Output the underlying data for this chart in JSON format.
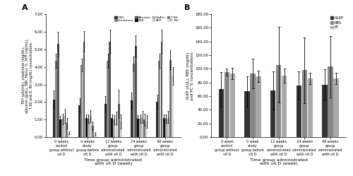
{
  "panel_A": {
    "title": "A",
    "xlabel": "Time group administrated\nwith vit D (week)",
    "ylabel": "TSH (μIU/mL), creatinine (mg/dL),\nalbumin (g/dL), INR, HbA₁c %, AFP (ng/mL),\nT. Bil and D. Bil (mg/dL) concentrations",
    "ylim": [
      0,
      7.0
    ],
    "yticks": [
      0.0,
      1.0,
      2.0,
      3.0,
      4.0,
      5.0,
      6.0,
      7.0
    ],
    "yticklabels": [
      "0.00",
      "1.00",
      "2.00",
      "3.00",
      "4.00",
      "5.00",
      "6.00",
      "7.00"
    ],
    "categories": [
      "0 weeks\ncontrol\ngroup without\nvit D",
      "0 weeks\nstudy\ngroup before\nvit D",
      "12 weeks\ngroup\nadministrated\nwith vit D",
      "24 weeks\ngroup\nadministrated\nwith vit D",
      "48 weeks\ngroup\nadministrated\nwith vit D"
    ],
    "series": [
      "TSH",
      "Creatinine",
      "Albumin",
      "INR",
      "HbA1c",
      "AFP",
      "T. Bil",
      "D. Bil"
    ],
    "colors": [
      "#2a2a2a",
      "#888888",
      "#555555",
      "#111111",
      "#aaaaaa",
      "#cccccc",
      "#777777",
      "#dddddd"
    ],
    "values": [
      [
        2.15,
        4.35,
        5.3,
        1.0,
        1.05,
        1.2,
        0.8,
        0.25
      ],
      [
        1.8,
        4.1,
        5.45,
        1.1,
        1.05,
        1.2,
        0.65,
        0.2
      ],
      [
        1.9,
        4.35,
        5.45,
        1.1,
        1.0,
        1.1,
        1.9,
        0.9
      ],
      [
        2.1,
        4.2,
        5.2,
        1.05,
        1.05,
        1.15,
        1.0,
        0.9
      ],
      [
        2.0,
        4.35,
        5.45,
        1.1,
        1.05,
        1.15,
        4.4,
        3.5
      ]
    ],
    "errors": [
      [
        0.5,
        0.4,
        0.7,
        0.2,
        0.3,
        0.4,
        0.3,
        0.1
      ],
      [
        0.4,
        0.35,
        0.6,
        0.2,
        0.25,
        0.35,
        0.25,
        0.1
      ],
      [
        0.45,
        0.4,
        0.65,
        0.2,
        0.25,
        0.35,
        0.8,
        0.4
      ],
      [
        0.45,
        0.4,
        0.6,
        0.2,
        0.25,
        0.35,
        0.35,
        0.35
      ],
      [
        0.4,
        0.4,
        0.65,
        0.2,
        0.25,
        0.35,
        0.55,
        0.5
      ]
    ],
    "legend_row1": [
      "TSH",
      "Creatinine",
      "Albumin",
      "INR"
    ],
    "legend_row2": [
      "HbA1c",
      "AFP",
      "T. Bil",
      "D. Bil"
    ]
  },
  "panel_B": {
    "title": "B",
    "xlabel": "Time group administrated\nwith vit D (week)",
    "ylabel": "ALKP (IU/L), RBS (mg/dL)\nand PC % concentrations",
    "ylim": [
      0,
      180.0
    ],
    "yticks": [
      0.0,
      20.0,
      40.0,
      60.0,
      80.0,
      100.0,
      120.0,
      140.0,
      160.0,
      180.0
    ],
    "yticklabels": [
      "0.00",
      "20.00",
      "40.00",
      "60.00",
      "80.00",
      "100.00",
      "120.00",
      "140.00",
      "160.00",
      "180.00"
    ],
    "categories": [
      "0 week\ncontrol\ngroup without\nvit D",
      "0 week\nstudy\ngroup before\nvit D",
      "12 weeks\ngroup\nadministrated\nwith vit D",
      "24 weeks\ngroup\nadministrated\nwith vit D",
      "48 weeks\ngroup\nadministrated\nwith vit D"
    ],
    "series": [
      "ALKP",
      "RBS",
      "PC"
    ],
    "colors": [
      "#333333",
      "#888888",
      "#aaaaaa"
    ],
    "values": [
      [
        70.0,
        95.0,
        93.0
      ],
      [
        67.0,
        93.0,
        89.0
      ],
      [
        68.0,
        106.0,
        90.0
      ],
      [
        76.0,
        98.0,
        86.0
      ],
      [
        77.0,
        103.0,
        86.0
      ]
    ],
    "errors": [
      [
        25.0,
        5.0,
        8.0
      ],
      [
        22.0,
        22.0,
        8.0
      ],
      [
        28.0,
        55.0,
        10.0
      ],
      [
        20.0,
        48.0,
        8.0
      ],
      [
        22.0,
        45.0,
        8.0
      ]
    ],
    "legend_items": [
      "ALKP",
      "RBS",
      "PC"
    ]
  }
}
